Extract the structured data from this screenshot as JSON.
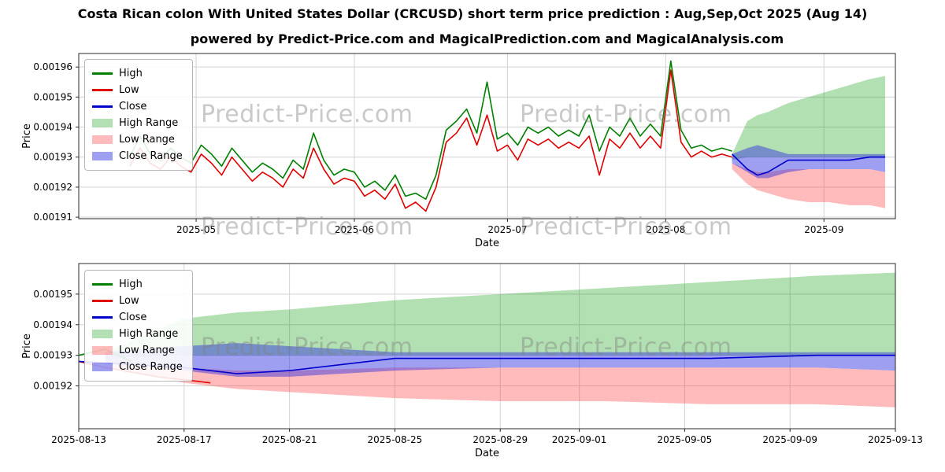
{
  "header": {
    "title": "Costa Rican colon With United States Dollar (CRCUSD) short term price prediction : Aug,Sep,Oct 2025 (Aug 14)",
    "subtitle": "powered by Predict-Price.com and MagicalPrediction.com and MagicalAnalysis.com",
    "watermark": "Predict-Price.com"
  },
  "chart_data": [
    {
      "type": "line",
      "name": "history-and-forecast-chart",
      "xlabel": "Date",
      "ylabel": "Price",
      "x_domain": [
        "2025-04-08",
        "2025-09-15"
      ],
      "y_domain": [
        0.0019095,
        0.0019645
      ],
      "x_ticks": [
        {
          "date": "2025-05-01",
          "label": "2025-05"
        },
        {
          "date": "2025-06-01",
          "label": "2025-06"
        },
        {
          "date": "2025-07-01",
          "label": "2025-07"
        },
        {
          "date": "2025-08-01",
          "label": "2025-08"
        },
        {
          "date": "2025-09-01",
          "label": "2025-09"
        }
      ],
      "y_ticks": [
        {
          "value": 0.00191,
          "label": "0.00191"
        },
        {
          "value": 0.00192,
          "label": "0.00192"
        },
        {
          "value": 0.00193,
          "label": "0.00193"
        },
        {
          "value": 0.00194,
          "label": "0.00194"
        },
        {
          "value": 0.00195,
          "label": "0.00195"
        },
        {
          "value": 0.00196,
          "label": "0.00196"
        }
      ],
      "legend": [
        {
          "label": "High",
          "type": "line",
          "color": "#008000"
        },
        {
          "label": "Low",
          "type": "line",
          "color": "#e00000"
        },
        {
          "label": "Close",
          "type": "line",
          "color": "#0000cd"
        },
        {
          "label": "High Range",
          "type": "fill",
          "color": "rgba(0,153,0,0.30)"
        },
        {
          "label": "Low Range",
          "type": "fill",
          "color": "rgba(255,42,42,0.32)"
        },
        {
          "label": "Close Range",
          "type": "fill",
          "color": "rgba(43,43,226,0.45)"
        }
      ],
      "bands": [
        {
          "name": "High Range",
          "color": "rgba(0,153,0,0.30)",
          "dates": [
            "2025-08-14",
            "2025-08-17",
            "2025-08-19",
            "2025-08-21",
            "2025-08-25",
            "2025-08-29",
            "2025-09-02",
            "2025-09-06",
            "2025-09-10",
            "2025-09-13"
          ],
          "top": [
            0.001931,
            0.001942,
            0.001944,
            0.001945,
            0.001948,
            0.00195,
            0.001952,
            0.001954,
            0.001956,
            0.001957
          ],
          "bottom": [
            0.001929,
            0.00193,
            0.00193,
            0.00193,
            0.00193,
            0.00193,
            0.00193,
            0.00193,
            0.00193,
            0.00193
          ]
        },
        {
          "name": "Low Range",
          "color": "rgba(255,42,42,0.32)",
          "dates": [
            "2025-08-14",
            "2025-08-17",
            "2025-08-19",
            "2025-08-21",
            "2025-08-25",
            "2025-08-29",
            "2025-09-02",
            "2025-09-06",
            "2025-09-10",
            "2025-09-13"
          ],
          "top": [
            0.001928,
            0.001926,
            0.001925,
            0.001925,
            0.001926,
            0.001926,
            0.001926,
            0.001926,
            0.001926,
            0.001925
          ],
          "bottom": [
            0.001926,
            0.001921,
            0.001919,
            0.001918,
            0.001916,
            0.001915,
            0.001915,
            0.001914,
            0.001914,
            0.001913
          ]
        },
        {
          "name": "Close Range",
          "color": "rgba(43,43,226,0.45)",
          "dates": [
            "2025-08-14",
            "2025-08-17",
            "2025-08-19",
            "2025-08-21",
            "2025-08-25",
            "2025-08-29",
            "2025-09-02",
            "2025-09-06",
            "2025-09-10",
            "2025-09-13"
          ],
          "top": [
            0.001931,
            0.001933,
            0.001934,
            0.001933,
            0.001931,
            0.001931,
            0.001931,
            0.001931,
            0.001931,
            0.001931
          ],
          "bottom": [
            0.001928,
            0.001925,
            0.001923,
            0.001923,
            0.001925,
            0.001926,
            0.001926,
            0.001926,
            0.001926,
            0.001925
          ]
        }
      ],
      "lines": [
        {
          "name": "High",
          "color": "#008000",
          "start": "2025-04-18",
          "step_days": 2,
          "values": [
            0.00193,
            0.001937,
            0.001931,
            0.001929,
            0.001933,
            0.00193,
            0.001928,
            0.001934,
            0.001931,
            0.001927,
            0.001933,
            0.001929,
            0.001925,
            0.001928,
            0.001926,
            0.001923,
            0.001929,
            0.001926,
            0.001938,
            0.001929,
            0.001924,
            0.001926,
            0.001925,
            0.00192,
            0.001922,
            0.001919,
            0.001924,
            0.001917,
            0.001918,
            0.001916,
            0.001924,
            0.001939,
            0.001942,
            0.001946,
            0.001938,
            0.001955,
            0.001936,
            0.001938,
            0.001934,
            0.00194,
            0.001938,
            0.00194,
            0.001937,
            0.001939,
            0.001937,
            0.001944,
            0.001932,
            0.00194,
            0.001937,
            0.001943,
            0.001937,
            0.001941,
            0.001937,
            0.001962,
            0.001939,
            0.001933,
            0.001934,
            0.001932,
            0.001933,
            0.001932
          ]
        },
        {
          "name": "Low",
          "color": "#e00000",
          "start": "2025-04-18",
          "step_days": 2,
          "values": [
            0.001927,
            0.001933,
            0.001928,
            0.001926,
            0.00193,
            0.001927,
            0.001925,
            0.001931,
            0.001928,
            0.001924,
            0.00193,
            0.001926,
            0.001922,
            0.001925,
            0.001923,
            0.00192,
            0.001926,
            0.001923,
            0.001933,
            0.001926,
            0.001921,
            0.001923,
            0.001922,
            0.001917,
            0.001919,
            0.001916,
            0.001921,
            0.001913,
            0.001915,
            0.001912,
            0.00192,
            0.001935,
            0.001938,
            0.001943,
            0.001934,
            0.001944,
            0.001932,
            0.001934,
            0.001929,
            0.001936,
            0.001934,
            0.001936,
            0.001933,
            0.001935,
            0.001933,
            0.001937,
            0.001924,
            0.001936,
            0.001933,
            0.001938,
            0.001933,
            0.001937,
            0.001933,
            0.001959,
            0.001935,
            0.00193,
            0.001932,
            0.00193,
            0.001931,
            0.00193
          ]
        },
        {
          "name": "Close",
          "color": "#0000cd",
          "dates": [
            "2025-08-14",
            "2025-08-17",
            "2025-08-19",
            "2025-08-21",
            "2025-08-25",
            "2025-08-29",
            "2025-09-02",
            "2025-09-06",
            "2025-09-10",
            "2025-09-13"
          ],
          "values": [
            0.001931,
            0.001926,
            0.001924,
            0.001925,
            0.001929,
            0.001929,
            0.001929,
            0.001929,
            0.00193,
            0.00193
          ]
        }
      ]
    },
    {
      "type": "line",
      "name": "forecast-zoom-chart",
      "xlabel": "Date",
      "ylabel": "Price",
      "x_domain": [
        "2025-08-13",
        "2025-09-13"
      ],
      "y_domain": [
        0.001906,
        0.00196
      ],
      "x_ticks": [
        {
          "date": "2025-08-13",
          "label": "2025-08-13"
        },
        {
          "date": "2025-08-17",
          "label": "2025-08-17"
        },
        {
          "date": "2025-08-21",
          "label": "2025-08-21"
        },
        {
          "date": "2025-08-25",
          "label": "2025-08-25"
        },
        {
          "date": "2025-08-29",
          "label": "2025-08-29"
        },
        {
          "date": "2025-09-01",
          "label": "2025-09-01"
        },
        {
          "date": "2025-09-05",
          "label": "2025-09-05"
        },
        {
          "date": "2025-09-09",
          "label": "2025-09-09"
        },
        {
          "date": "2025-09-13",
          "label": "2025-09-13"
        }
      ],
      "y_ticks": [
        {
          "value": 0.00192,
          "label": "0.00192"
        },
        {
          "value": 0.00193,
          "label": "0.00193"
        },
        {
          "value": 0.00194,
          "label": "0.00194"
        },
        {
          "value": 0.00195,
          "label": "0.00195"
        }
      ],
      "legend": [
        {
          "label": "High",
          "type": "line",
          "color": "#008000"
        },
        {
          "label": "Low",
          "type": "line",
          "color": "#e00000"
        },
        {
          "label": "Close",
          "type": "line",
          "color": "#0000cd"
        },
        {
          "label": "High Range",
          "type": "fill",
          "color": "rgba(0,153,0,0.30)"
        },
        {
          "label": "Low Range",
          "type": "fill",
          "color": "rgba(255,42,42,0.32)"
        },
        {
          "label": "Close Range",
          "type": "fill",
          "color": "rgba(43,43,226,0.45)"
        }
      ],
      "bands": [
        {
          "name": "High Range",
          "color": "rgba(0,153,0,0.30)",
          "dates": [
            "2025-08-14",
            "2025-08-17",
            "2025-08-19",
            "2025-08-21",
            "2025-08-25",
            "2025-08-29",
            "2025-09-02",
            "2025-09-06",
            "2025-09-10",
            "2025-09-13"
          ],
          "top": [
            0.001931,
            0.001942,
            0.001944,
            0.001945,
            0.001948,
            0.00195,
            0.001952,
            0.001954,
            0.001956,
            0.001957
          ],
          "bottom": [
            0.001929,
            0.00193,
            0.00193,
            0.00193,
            0.00193,
            0.00193,
            0.00193,
            0.00193,
            0.00193,
            0.00193
          ]
        },
        {
          "name": "Low Range",
          "color": "rgba(255,42,42,0.32)",
          "dates": [
            "2025-08-14",
            "2025-08-17",
            "2025-08-19",
            "2025-08-21",
            "2025-08-25",
            "2025-08-29",
            "2025-09-02",
            "2025-09-06",
            "2025-09-10",
            "2025-09-13"
          ],
          "top": [
            0.001928,
            0.001926,
            0.001925,
            0.001925,
            0.001926,
            0.001926,
            0.001926,
            0.001926,
            0.001926,
            0.001925
          ],
          "bottom": [
            0.001926,
            0.001921,
            0.001919,
            0.001918,
            0.001916,
            0.001915,
            0.001915,
            0.001914,
            0.001914,
            0.001913
          ]
        },
        {
          "name": "Close Range",
          "color": "rgba(43,43,226,0.45)",
          "dates": [
            "2025-08-14",
            "2025-08-17",
            "2025-08-19",
            "2025-08-21",
            "2025-08-25",
            "2025-08-29",
            "2025-09-02",
            "2025-09-06",
            "2025-09-10",
            "2025-09-13"
          ],
          "top": [
            0.001931,
            0.001933,
            0.001934,
            0.001933,
            0.001931,
            0.001931,
            0.001931,
            0.001931,
            0.001931,
            0.001931
          ],
          "bottom": [
            0.001928,
            0.001925,
            0.001923,
            0.001923,
            0.001925,
            0.001926,
            0.001926,
            0.001926,
            0.001926,
            0.001925
          ]
        }
      ],
      "lines": [
        {
          "name": "High",
          "color": "#008000",
          "dates": [
            "2025-08-13",
            "2025-08-14",
            "2025-08-15"
          ],
          "values": [
            0.00193,
            0.001932,
            0.001928
          ]
        },
        {
          "name": "Low",
          "color": "#e00000",
          "dates": [
            "2025-08-13",
            "2025-08-14",
            "2025-08-16",
            "2025-08-18"
          ],
          "values": [
            0.001928,
            0.001926,
            0.001923,
            0.001921
          ]
        },
        {
          "name": "Close",
          "color": "#0000cd",
          "dates": [
            "2025-08-13",
            "2025-08-17",
            "2025-08-19",
            "2025-08-21",
            "2025-08-25",
            "2025-08-29",
            "2025-09-02",
            "2025-09-06",
            "2025-09-10",
            "2025-09-13"
          ],
          "values": [
            0.001928,
            0.001926,
            0.001924,
            0.001925,
            0.001929,
            0.001929,
            0.001929,
            0.001929,
            0.00193,
            0.00193
          ]
        }
      ]
    }
  ]
}
